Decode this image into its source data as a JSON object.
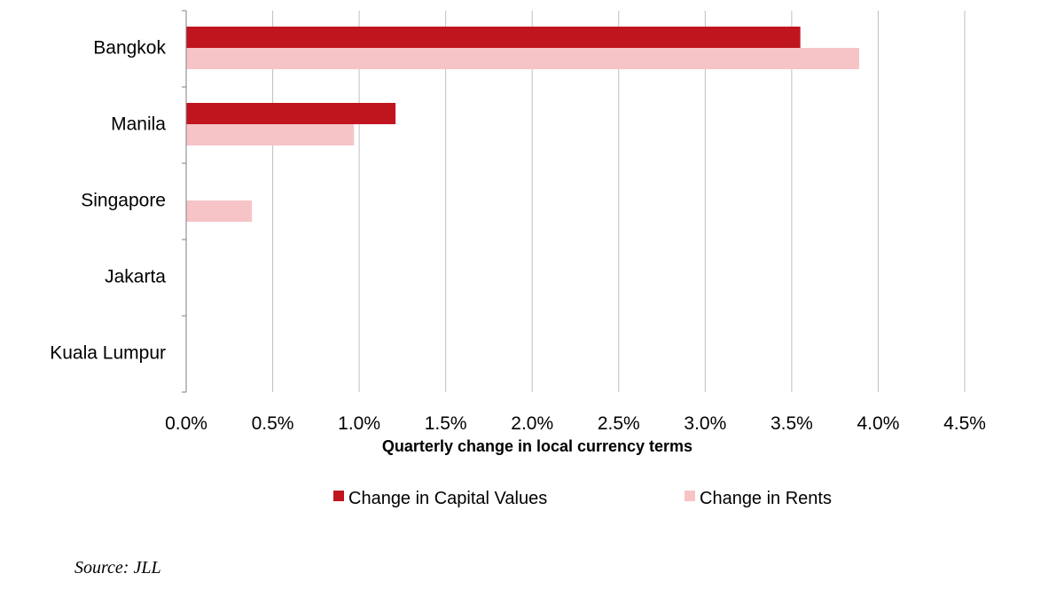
{
  "chart_data": {
    "type": "bar",
    "orientation": "horizontal",
    "categories": [
      "Bangkok",
      "Manila",
      "Singapore",
      "Jakarta",
      "Kuala Lumpur"
    ],
    "series": [
      {
        "name": "Change in Capital Values",
        "values": [
          3.55,
          1.21,
          0.0,
          0.0,
          0.0
        ],
        "color": "#c0151f"
      },
      {
        "name": "Change in Rents",
        "values": [
          3.89,
          0.97,
          0.38,
          0.0,
          0.0
        ],
        "color": "#f6c4c7"
      }
    ],
    "x_ticks": [
      "0.0%",
      "0.5%",
      "1.0%",
      "1.5%",
      "2.0%",
      "2.5%",
      "3.0%",
      "3.5%",
      "4.0%",
      "4.5%"
    ],
    "xlim": [
      0,
      4.5
    ],
    "xlabel": "Quarterly change in local currency terms",
    "grid": true,
    "legend_position": "bottom"
  },
  "source": "Source: JLL"
}
